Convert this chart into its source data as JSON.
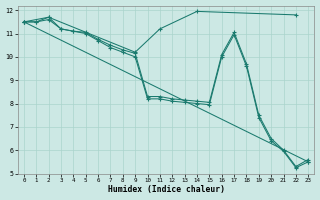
{
  "xlabel": "Humidex (Indice chaleur)",
  "background_color": "#cce8e4",
  "grid_color": "#aad4cc",
  "line_color": "#1a7a6e",
  "xlim": [
    -0.5,
    23.5
  ],
  "ylim": [
    5,
    12.2
  ],
  "xticks": [
    0,
    1,
    2,
    3,
    4,
    5,
    6,
    7,
    8,
    9,
    10,
    11,
    12,
    13,
    14,
    15,
    16,
    17,
    18,
    19,
    20,
    21,
    22,
    23
  ],
  "yticks": [
    5,
    6,
    7,
    8,
    9,
    10,
    11,
    12
  ],
  "series": [
    {
      "x": [
        0,
        1,
        2,
        3,
        4,
        5,
        6,
        7,
        8,
        9,
        10,
        11,
        12,
        13,
        14,
        15,
        16,
        17,
        18,
        19,
        20,
        21,
        22,
        23
      ],
      "y": [
        11.5,
        11.5,
        11.7,
        11.2,
        11.1,
        11.05,
        10.75,
        10.5,
        10.3,
        10.15,
        8.3,
        8.3,
        8.2,
        8.15,
        8.1,
        8.05,
        10.1,
        11.05,
        9.7,
        7.5,
        6.5,
        6.0,
        5.3,
        5.6
      ]
    },
    {
      "x": [
        0,
        1,
        2,
        3,
        4,
        5,
        6,
        7,
        8,
        9,
        10,
        11,
        12,
        13,
        14,
        15,
        16,
        17,
        18,
        19,
        20,
        21,
        22,
        23
      ],
      "y": [
        11.5,
        11.5,
        11.6,
        11.2,
        11.1,
        11.0,
        10.7,
        10.4,
        10.2,
        10.0,
        8.2,
        8.2,
        8.1,
        8.05,
        8.0,
        7.95,
        10.0,
        10.95,
        9.6,
        7.4,
        6.4,
        5.95,
        5.25,
        5.5
      ]
    },
    {
      "x": [
        0,
        2,
        9,
        11,
        14,
        22
      ],
      "y": [
        11.5,
        11.7,
        10.2,
        11.2,
        11.95,
        11.8
      ]
    },
    {
      "x": [
        0,
        23
      ],
      "y": [
        11.5,
        5.5
      ]
    }
  ]
}
